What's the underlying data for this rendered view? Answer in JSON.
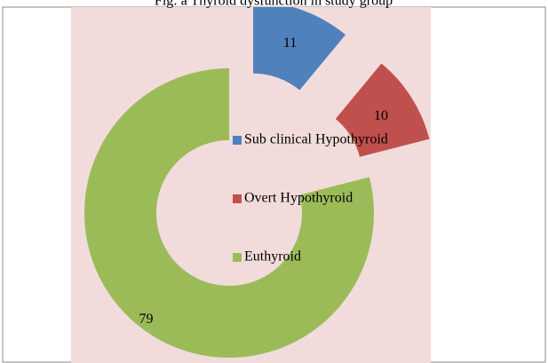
{
  "chart_data": {
    "type": "pie",
    "title": "Fig: a Thyroid dysfunction in study group",
    "categories": [
      "Sub clinical Hypothyroid",
      "Overt Hypothyroid",
      "Euthyroid"
    ],
    "values": [
      11,
      10,
      79
    ],
    "colors": [
      "#4f81bd",
      "#c0504d",
      "#9bbb59"
    ],
    "donut": true,
    "exploded": [
      true,
      true,
      false
    ],
    "legend": "right"
  }
}
